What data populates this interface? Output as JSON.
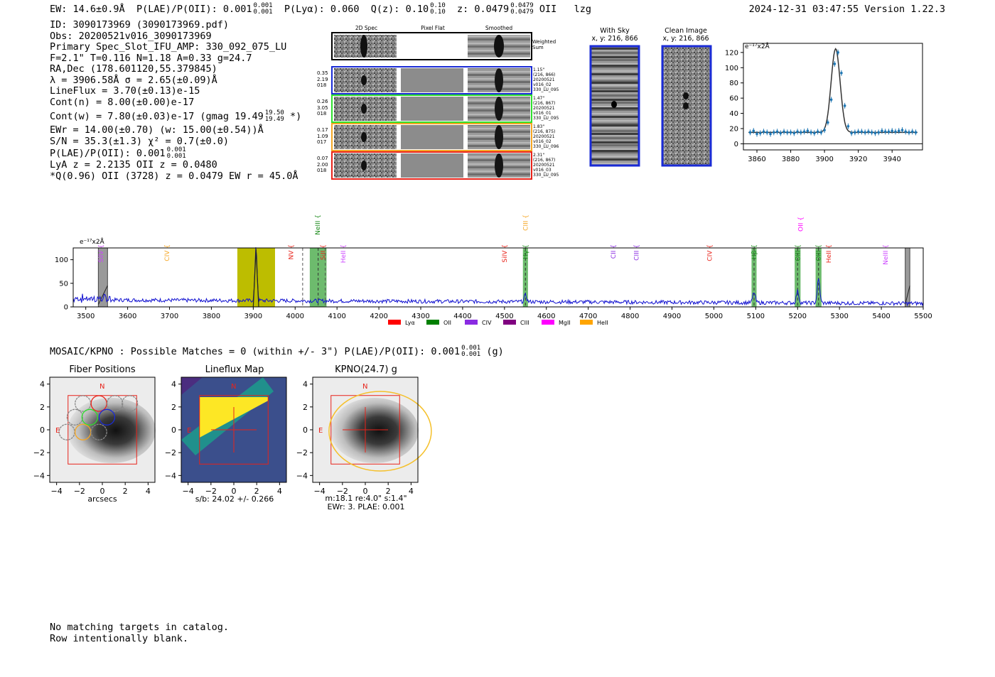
{
  "header": {
    "ew": "EW: 14.6±0.9Å",
    "plae_label": "P(LAE)/P(OII): 0.001",
    "plae_hi": "0.001",
    "plae_lo": "0.001",
    "plya": "P(Lyα): 0.060",
    "qz_label": "Q(z): 0.10",
    "qz_hi": "0.10",
    "qz_lo": "0.10",
    "z_label": "z: 0.0479",
    "z_hi": "0.0479",
    "z_lo": "0.0479",
    "line_name": "OII",
    "flag": "lzg",
    "timestamp": "2024-12-31 03:47:55  Version 1.22.3"
  },
  "info": {
    "l1": "ID: 3090173969 (3090173969.pdf)",
    "l2": "Obs: 20200521v016_3090173969",
    "l3": "Primary Spec_Slot_IFU_AMP: 330_092_075_LU",
    "l4": "F=2.1\"  T=0.116  N=1.18  A=0.33  g=24.7",
    "l5": "RA,Dec (178.601120,55.379845)",
    "l6": "λ = 3906.58Å  σ = 2.65(±0.09)Å",
    "l7": "LineFlux = 3.70(±0.13)e-15",
    "l8": "Cont(n) = 8.00(±0.00)e-17",
    "l9": "Cont(w) = 7.80(±0.03)e-17 (gmag 19.49",
    "l9_hi": "19.50",
    "l9_lo": "19.49",
    "l9_end": "*)",
    "l10": "EWr = 14.00(±0.70)  (w: 15.00(±0.54))Å",
    "l11": "S/N = 35.3(±1.3)  χ² = 0.7(±0.0)",
    "l12": "P(LAE)/P(OII): 0.001",
    "l12_hi": "0.001",
    "l12_lo": "0.001",
    "l13": "LyA z = 2.2135  OII z = 0.0480",
    "l14": "*Q(0.96) OII (3728) z = 0.0479  EW r = 45.0Å"
  },
  "cutouts": {
    "col_2d": "2D Spec",
    "col_flat": "Pixel Flat",
    "col_smooth": "Smoothed",
    "weighted": "Weighted Sum",
    "rows": [
      {
        "left": [
          "0.35",
          "2.19",
          "018"
        ],
        "right": [
          "1.15\"",
          "(216, 866)",
          "20200521",
          "v016_02",
          "330_LU_095"
        ],
        "color": "#1a2bd6"
      },
      {
        "left": [
          "0.26",
          "3.05",
          "018"
        ],
        "right": [
          "1.47\"",
          "(216, 867)",
          "20200521",
          "v016_01",
          "330_LU_095"
        ],
        "color": "#2ee02e"
      },
      {
        "left": [
          "0.17",
          "1.09",
          "017"
        ],
        "right": [
          "1.83\"",
          "(216, 875)",
          "20200521",
          "v016_02",
          "330_LU_096"
        ],
        "color": "#f5a623"
      },
      {
        "left": [
          "0.07",
          "2.00",
          "018"
        ],
        "right": [
          "2.31\"",
          "(216, 867)",
          "20200521",
          "v016_03",
          "330_LU_095"
        ],
        "color": "#e8231a"
      }
    ],
    "with_sky_title": "With Sky",
    "with_sky_xy": "x, y: 216, 866",
    "clean_title": "Clean Image",
    "clean_xy": "x, y: 216, 866"
  },
  "zoom_plot": {
    "unit_label": "e⁻¹⁷x2Å",
    "chart_data": {
      "type": "line",
      "xlim": [
        3852,
        3958
      ],
      "ylim": [
        -8,
        132
      ],
      "xticks": [
        3860,
        3880,
        3900,
        3920,
        3940
      ],
      "yticks": [
        0,
        20,
        40,
        60,
        80,
        100,
        120
      ],
      "fit": {
        "center": 3906.58,
        "sigma": 2.65,
        "amp": 110,
        "cont": 15
      },
      "points_x": [
        3856,
        3858,
        3860,
        3862,
        3864,
        3866,
        3868,
        3870,
        3872,
        3874,
        3876,
        3878,
        3880,
        3882,
        3884,
        3886,
        3888,
        3890,
        3892,
        3894,
        3896,
        3898,
        3900,
        3902,
        3904,
        3906,
        3908,
        3910,
        3912,
        3914,
        3916,
        3918,
        3920,
        3922,
        3924,
        3926,
        3928,
        3930,
        3932,
        3934,
        3936,
        3938,
        3940,
        3942,
        3944,
        3946,
        3948,
        3950,
        3952,
        3954
      ],
      "points_y": [
        15,
        17,
        13,
        14,
        16,
        15,
        13,
        15,
        16,
        14,
        16,
        15,
        15,
        14,
        16,
        15,
        16,
        17,
        15,
        14,
        16,
        15,
        18,
        28,
        58,
        105,
        120,
        93,
        50,
        23,
        14,
        15,
        16,
        16,
        15,
        16,
        15,
        14,
        15,
        17,
        16,
        16,
        17,
        16,
        17,
        18,
        16,
        15,
        16,
        15
      ]
    }
  },
  "full_spectrum": {
    "unit_label": "e⁻¹⁷x2Å",
    "chart_data": {
      "type": "line",
      "xlim": [
        3470,
        5500
      ],
      "ylim": [
        0,
        125
      ],
      "xticks": [
        3500,
        3600,
        3700,
        3800,
        3900,
        4000,
        4100,
        4200,
        4300,
        4400,
        4500,
        4600,
        4700,
        4800,
        4900,
        5000,
        5100,
        5200,
        5300,
        5400,
        5500
      ],
      "yticks": [
        0,
        50,
        100
      ],
      "peaks": [
        {
          "x": 3906.6,
          "amp": 112,
          "sig": 2.6
        },
        {
          "x": 4550,
          "amp": 14,
          "sig": 3
        },
        {
          "x": 5096,
          "amp": 22,
          "sig": 3
        },
        {
          "x": 5200,
          "amp": 25,
          "sig": 3
        },
        {
          "x": 5250,
          "amp": 50,
          "sig": 3
        }
      ],
      "continuum": 15,
      "line_markers": [
        {
          "name": "SiIV",
          "x": 3536,
          "tier": 2,
          "color": "#cc44ff"
        },
        {
          "name": "CIV",
          "x": 3694,
          "tier": 2,
          "color": "#f5a623"
        },
        {
          "name": "NV",
          "x": 3990,
          "tier": 2,
          "color": "#e8231a"
        },
        {
          "name": "SiII",
          "x": 4067,
          "tier": 2,
          "color": "#e8231a"
        },
        {
          "name": "NeIII",
          "x": 4054,
          "tier": 0,
          "color": "#1a8a1a"
        },
        {
          "name": "HeII",
          "x": 4115,
          "tier": 2,
          "color": "#cc44ff"
        },
        {
          "name": "SiIV",
          "x": 4500,
          "tier": 2,
          "color": "#e8231a"
        },
        {
          "name": "Hγ",
          "x": 4550,
          "tier": 2,
          "color": "#1a8a1a"
        },
        {
          "name": "CIII",
          "x": 4550,
          "tier": 0,
          "color": "#f5a623"
        },
        {
          "name": "CII",
          "x": 4760,
          "tier": 2,
          "color": "#8a2be2"
        },
        {
          "name": "CIII",
          "x": 4815,
          "tier": 2,
          "color": "#8a2be2"
        },
        {
          "name": "CIV",
          "x": 4990,
          "tier": 2,
          "color": "#e8231a"
        },
        {
          "name": "Hβ",
          "x": 5096,
          "tier": 2,
          "color": "#1a8a1a"
        },
        {
          "name": "OII",
          "x": 5207,
          "tier": 1,
          "color": "#ff00ff"
        },
        {
          "name": "OIII",
          "x": 5200,
          "tier": 2,
          "color": "#1a8a1a"
        },
        {
          "name": "OIII",
          "x": 5250,
          "tier": 2,
          "color": "#1a8a1a"
        },
        {
          "name": "HeII",
          "x": 5274,
          "tier": 2,
          "color": "#e8231a"
        },
        {
          "name": "NeIII",
          "x": 5410,
          "tier": 2,
          "color": "#cc44ff"
        }
      ],
      "bands": [
        {
          "x0": 3530,
          "x1": 3552,
          "kind": "masked"
        },
        {
          "x0": 3862,
          "x1": 3952,
          "kind": "olive"
        },
        {
          "x0": 4035,
          "x1": 4075,
          "kind": "green"
        },
        {
          "x0": 4544,
          "x1": 4556,
          "kind": "green"
        },
        {
          "x0": 5090,
          "x1": 5102,
          "kind": "green"
        },
        {
          "x0": 5193,
          "x1": 5207,
          "kind": "green"
        },
        {
          "x0": 5243,
          "x1": 5257,
          "kind": "green"
        },
        {
          "x0": 5457,
          "x1": 5468,
          "kind": "masked"
        }
      ],
      "dashed_lines": [
        4018,
        4072
      ],
      "legend": [
        {
          "label": "Lyα",
          "color": "#ff0000"
        },
        {
          "label": "OII",
          "color": "#008000"
        },
        {
          "label": "CIV",
          "color": "#8a2be2"
        },
        {
          "label": "CIII",
          "color": "#800080"
        },
        {
          "label": "MgII",
          "color": "#ff00ff"
        },
        {
          "label": "HeII",
          "color": "#ffa500"
        }
      ]
    }
  },
  "matches": {
    "text": "MOSAIC/KPNO : Possible Matches = 0 (within +/- 3\")  P(LAE)/P(OII): 0.001",
    "hi": "0.001",
    "lo": "0.001",
    "end": "(g)"
  },
  "panels": {
    "fiber_title": "Fiber Positions",
    "fiber_xlabel": "arcsecs",
    "flux_title": "Lineflux Map",
    "flux_xlabel": "s/b: 24.02 +/- 0.266",
    "kpno_title": "KPNO(24.7) g",
    "kpno_xlabel1": "m:18.1  re:4.0\"  s:1.4\"",
    "kpno_xlabel2": "EWr: 3. PLAE: 0.001",
    "north": "N",
    "east": "E",
    "ticks": [
      "4",
      "2",
      "0",
      "−2",
      "−4"
    ],
    "xticks": [
      "−4",
      "−2",
      "0",
      "2",
      "4"
    ]
  },
  "footer": {
    "l1": "No matching targets in catalog.",
    "l2": "Row intentionally blank."
  }
}
